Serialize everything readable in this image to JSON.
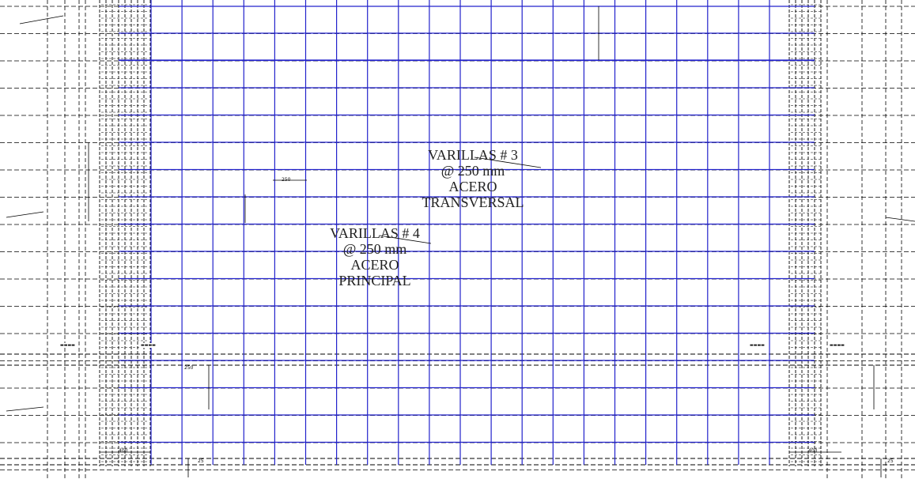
{
  "drawing": {
    "labels": {
      "transversal": {
        "line1": "VARILLAS # 3",
        "line2": "@ 250 mm",
        "line3": "ACERO",
        "line4": "TRANSVERSAL"
      },
      "principal": {
        "line1": "VARILLAS # 4",
        "line2": "@ 250 mm",
        "line3": "ACERO",
        "line4": "PRINCIPAL"
      }
    },
    "dimension_text": {
      "spacing": "250",
      "edge": "250",
      "bottom_left": "400",
      "bottom_right": "400",
      "corner_left": "25",
      "corner_right": "25"
    },
    "colors": {
      "mesh": "#2222cc",
      "lines": "#000000",
      "background": "#ffffff"
    }
  }
}
